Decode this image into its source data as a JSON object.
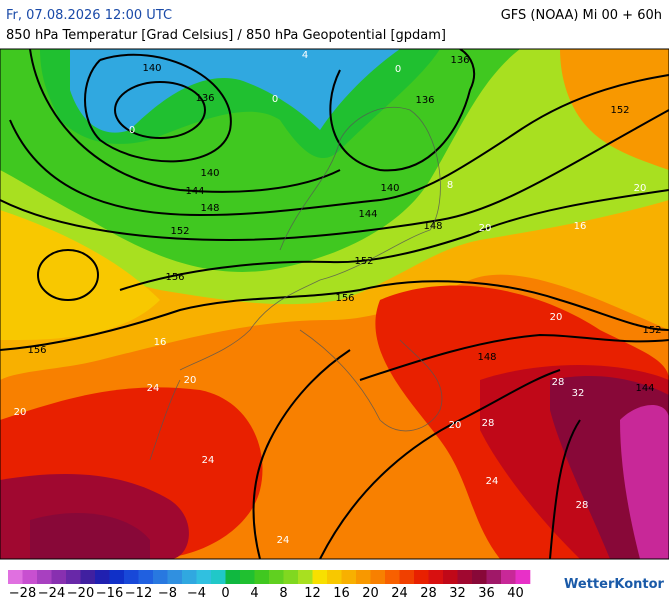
{
  "header": {
    "left": "Fr, 07.08.2026 12:00 UTC",
    "right": "GFS (NOAA) Mi 00 + 60h",
    "subtitle": "850 hPa Temperatur [Grad Celsius] / 850 hPa Geopotential [gpdam]"
  },
  "contour_labels": [
    "140",
    "136",
    "136",
    "136",
    "140",
    "144",
    "148",
    "152",
    "140",
    "144",
    "148",
    "152",
    "156",
    "156",
    "156",
    "152",
    "152",
    "148",
    "144"
  ],
  "isotherm_labels": [
    "0",
    "0",
    "4",
    "0",
    "8",
    "16",
    "20",
    "20",
    "20",
    "24",
    "20",
    "20",
    "24",
    "28",
    "32",
    "28",
    "28",
    "24",
    "24",
    "20",
    "16"
  ],
  "colorbar": {
    "ticks": [
      "−28",
      "−24",
      "−20",
      "−16",
      "−12",
      "−8",
      "−4",
      "0",
      "4",
      "8",
      "12",
      "16",
      "20",
      "24",
      "28",
      "32",
      "36",
      "40"
    ],
    "colors": [
      "#e070e0",
      "#c850d0",
      "#a840c0",
      "#8830b0",
      "#6828a8",
      "#4020a0",
      "#2020b0",
      "#1030c8",
      "#1848d8",
      "#2060e0",
      "#2878e0",
      "#3090e0",
      "#30a8e0",
      "#30c0e0",
      "#20c8c8",
      "#10b840",
      "#20c030",
      "#40c820",
      "#60d020",
      "#80d820",
      "#a8e020",
      "#f8e000",
      "#f8c800",
      "#f8b000",
      "#f89800",
      "#f88000",
      "#f86000",
      "#f04000",
      "#e82000",
      "#d81010",
      "#c00818",
      "#a00830",
      "#880838",
      "#a01868",
      "#c82898",
      "#e830c8"
    ]
  },
  "logo": "WetterKontor"
}
